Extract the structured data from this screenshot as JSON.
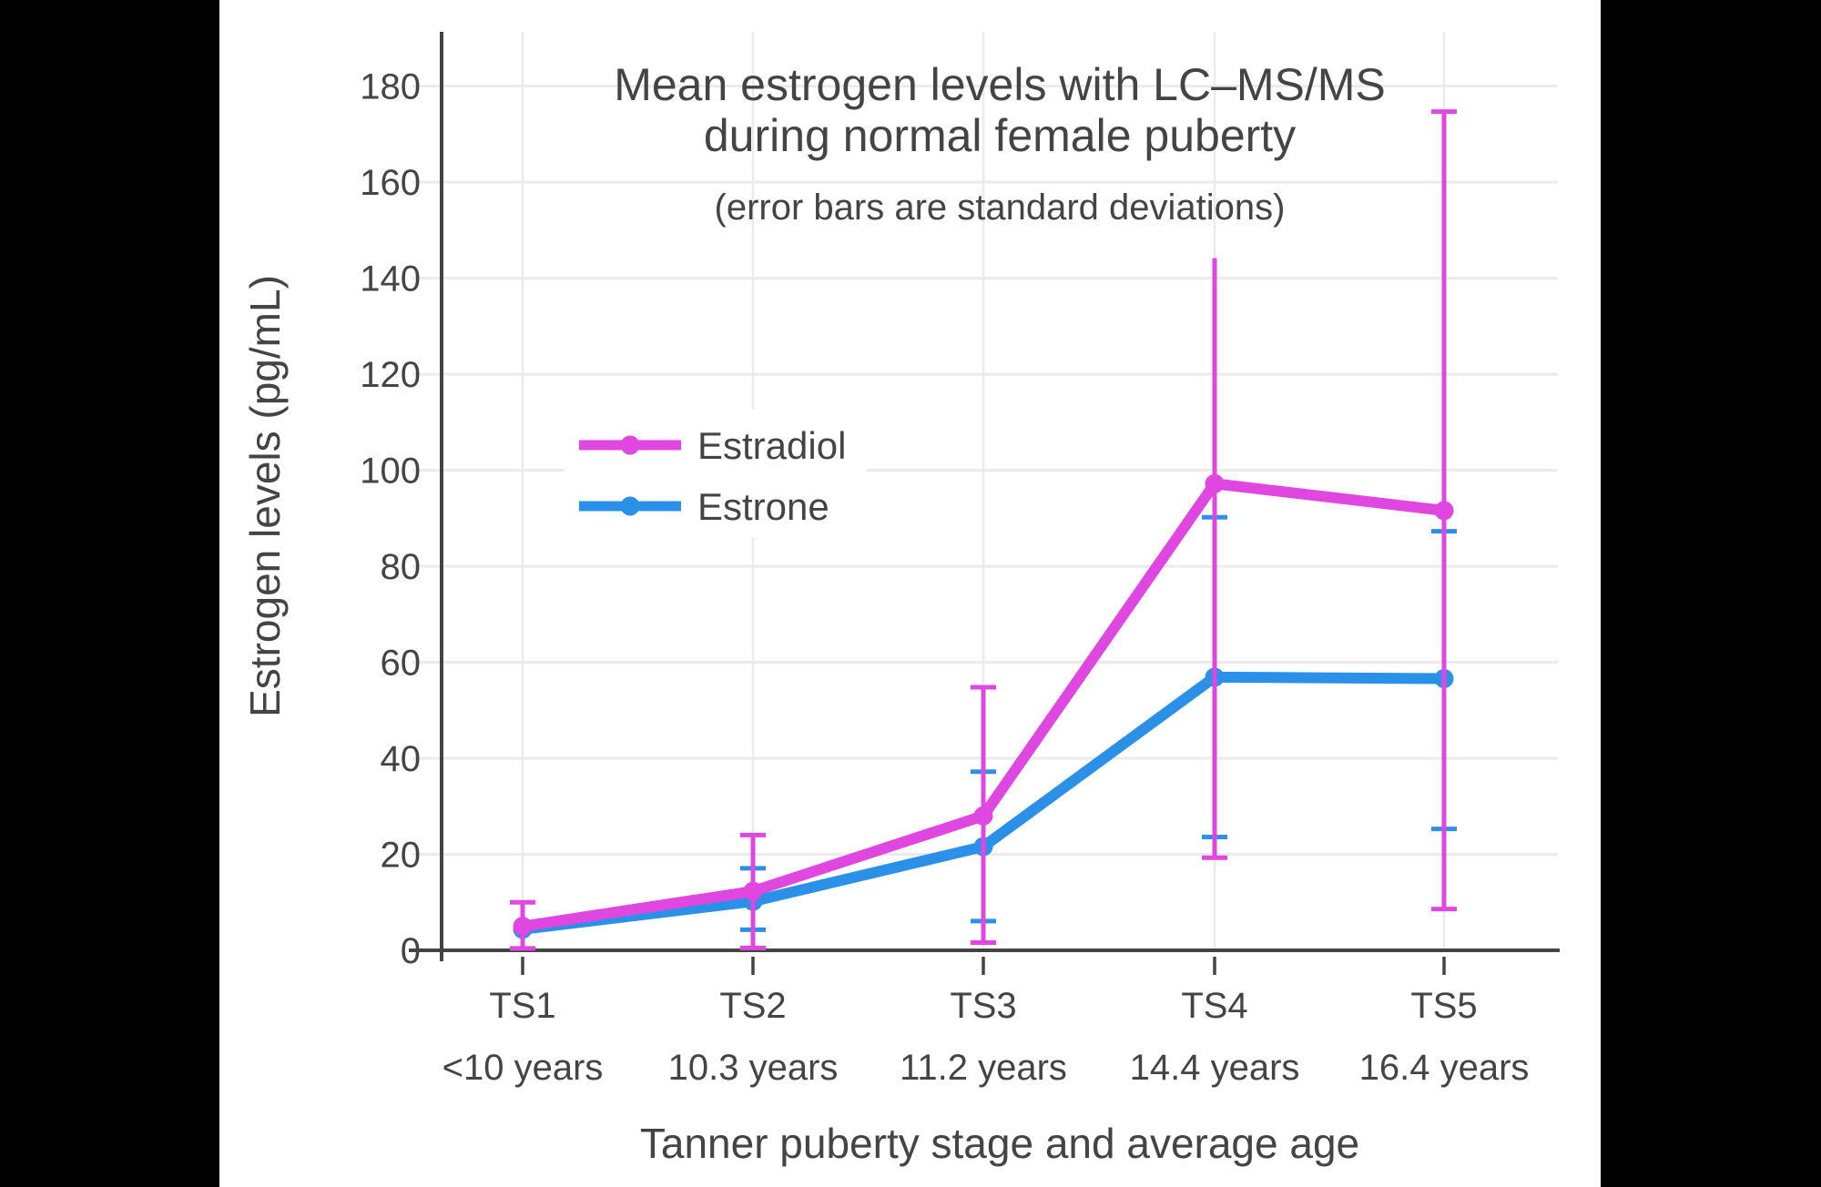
{
  "theme": {
    "page_background": "#000000",
    "canvas_background": "#ffffff",
    "text_color": "#444444",
    "axis_color": "#444444",
    "grid_color": "#ebebeb"
  },
  "title": {
    "line1": "Mean estrogen levels with LC–MS/MS",
    "line2": "during normal female puberty",
    "subtitle": "(error bars are standard deviations)"
  },
  "axes": {
    "y": {
      "title": "Estrogen levels (pg/mL)",
      "ticks": [
        0,
        20,
        40,
        60,
        80,
        100,
        120,
        140,
        160,
        180
      ],
      "max": 191
    },
    "x": {
      "title": "Tanner puberty stage and average age",
      "categories": [
        {
          "stage": "TS1",
          "age": "<10 years"
        },
        {
          "stage": "TS2",
          "age": "10.3 years"
        },
        {
          "stage": "TS3",
          "age": "11.2 years"
        },
        {
          "stage": "TS4",
          "age": "14.4 years"
        },
        {
          "stage": "TS5",
          "age": "16.4 years"
        }
      ]
    }
  },
  "legend": {
    "items": [
      {
        "label": "Estradiol",
        "color": "#DF47E0"
      },
      {
        "label": "Estrone",
        "color": "#2B91E8"
      }
    ]
  },
  "chart_data": {
    "type": "line",
    "title": "Mean estrogen levels with LC–MS/MS during normal female puberty",
    "subtitle": "(error bars are standard deviations)",
    "xlabel": "Tanner puberty stage and average age",
    "ylabel": "Estrogen levels (pg/mL)",
    "ylim": [
      0,
      191
    ],
    "grid": true,
    "legend_position": "inside middle-left",
    "categories": [
      "TS1",
      "TS2",
      "TS3",
      "TS4",
      "TS5"
    ],
    "category_ages": [
      "<10 years",
      "10.3 years",
      "11.2 years",
      "14.4 years",
      "16.4 years"
    ],
    "series": [
      {
        "name": "Estrone",
        "color": "#2B91E8",
        "values": [
          4.4,
          10.2,
          21.6,
          56.9,
          56.6
        ],
        "error_low": [
          null,
          4.3,
          6.1,
          23.6,
          25.3
        ],
        "error_high": [
          null,
          17.1,
          37.2,
          90.2,
          87.3
        ],
        "top_caps": [
          false,
          true,
          true,
          true,
          true
        ],
        "bottom_caps": [
          false,
          true,
          true,
          true,
          true
        ]
      },
      {
        "name": "Estradiol",
        "color": "#DF47E0",
        "values": [
          5.0,
          12.3,
          28.0,
          97.2,
          91.6
        ],
        "error_low": [
          0.4,
          0.5,
          1.6,
          19.3,
          8.6
        ],
        "error_high": [
          10.0,
          24.0,
          54.8,
          144.2,
          174.7
        ],
        "top_caps": [
          true,
          true,
          true,
          false,
          true
        ],
        "bottom_caps": [
          true,
          true,
          true,
          true,
          true
        ]
      }
    ]
  }
}
